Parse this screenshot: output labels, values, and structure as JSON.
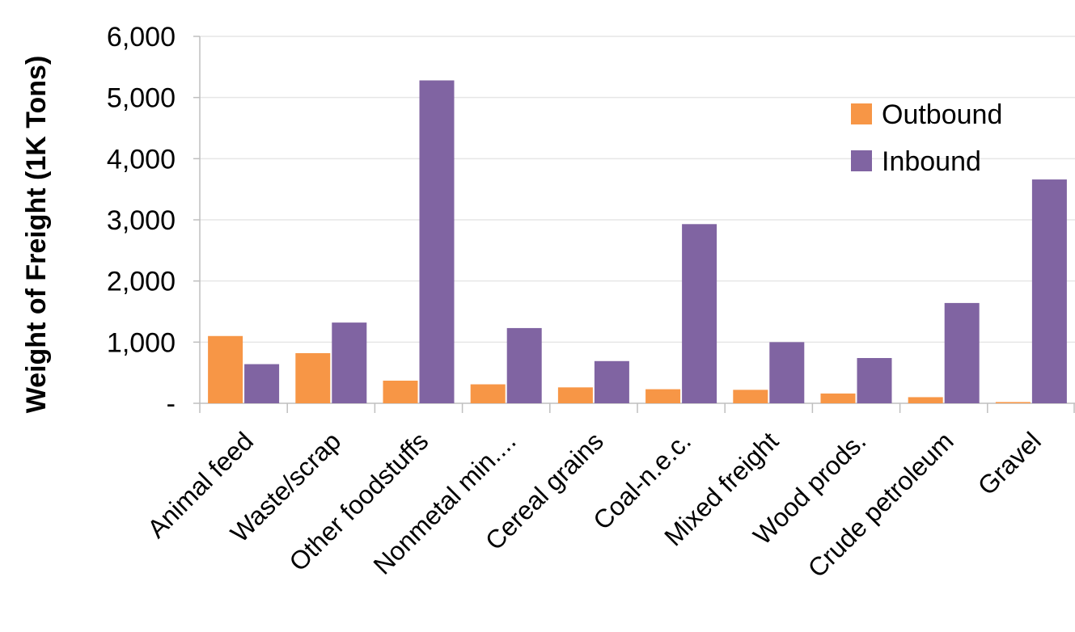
{
  "chart_data": {
    "type": "bar",
    "title": "",
    "xlabel": "",
    "ylabel": "Weight of Freight (1K Tons)",
    "ylim": [
      0,
      6000
    ],
    "yticks": [
      0,
      1000,
      2000,
      3000,
      4000,
      5000,
      6000
    ],
    "ytick_labels": [
      "-",
      "1,000",
      "2,000",
      "3,000",
      "4,000",
      "5,000",
      "6,000"
    ],
    "categories": [
      "Animal feed",
      "Waste/scrap",
      "Other foodstuffs",
      "Nonmetal min....",
      "Cereal grains",
      "Coal-n.e.c.",
      "Mixed freight",
      "Wood prods.",
      "Crude petroleum",
      "Gravel"
    ],
    "series": [
      {
        "name": "Outbound",
        "color": "#F79646",
        "values": [
          1100,
          820,
          370,
          310,
          260,
          230,
          220,
          160,
          100,
          20
        ]
      },
      {
        "name": "Inbound",
        "color": "#8064A2",
        "values": [
          640,
          1320,
          5280,
          1230,
          690,
          2930,
          1000,
          740,
          1640,
          3660
        ]
      }
    ],
    "grid": true,
    "legend": "top-right"
  }
}
